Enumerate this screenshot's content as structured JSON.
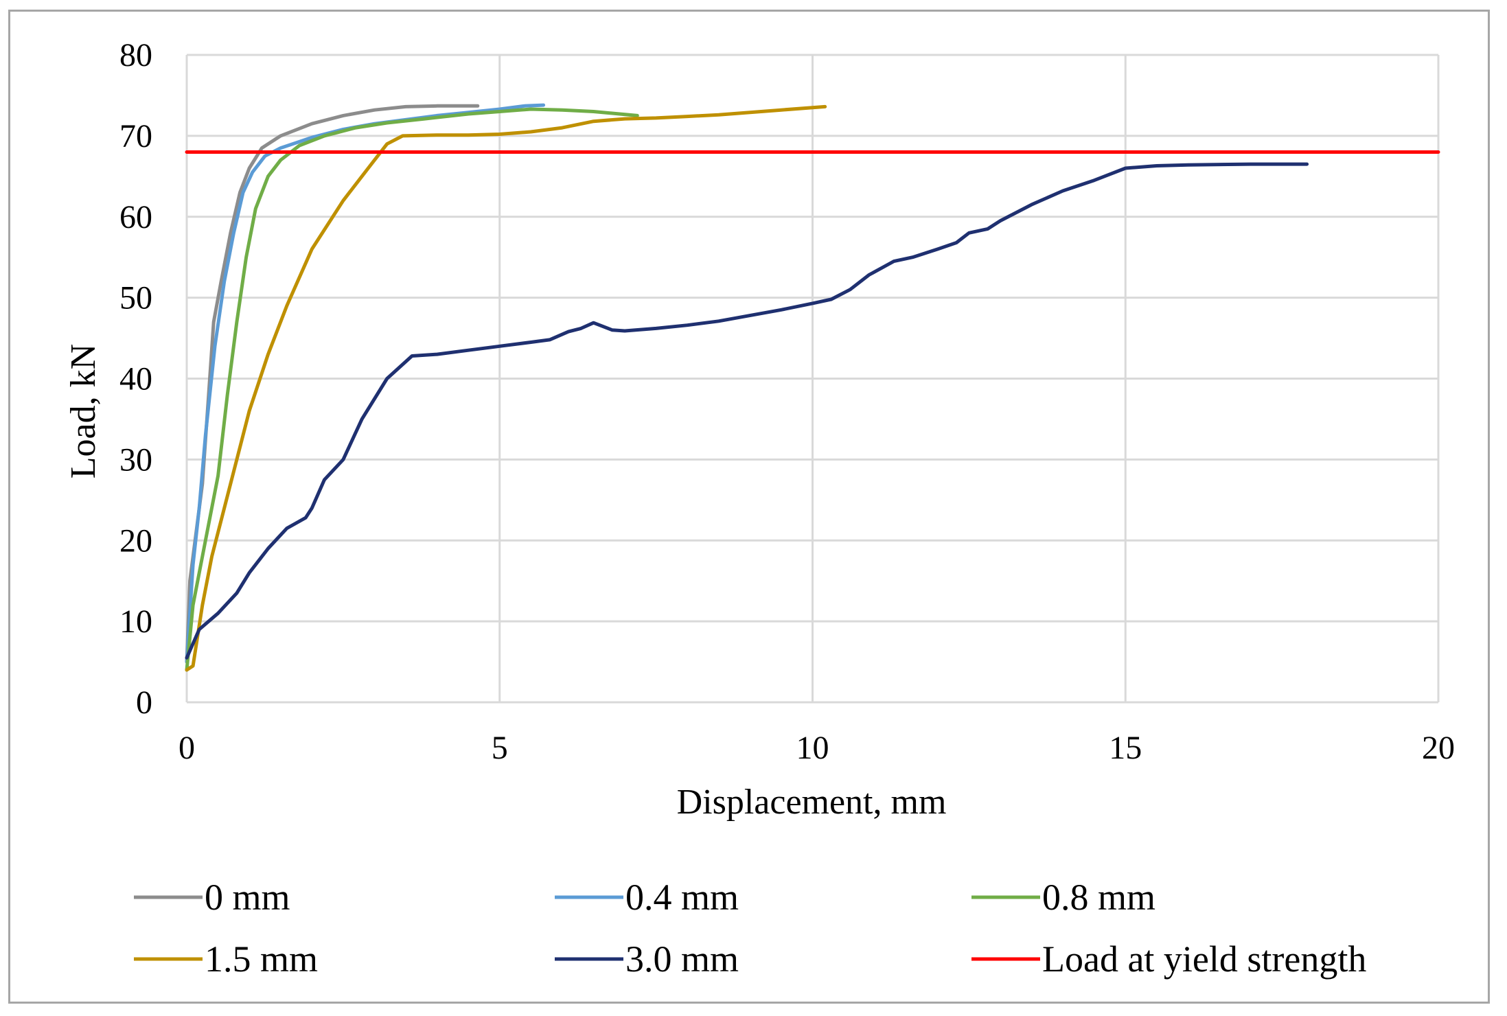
{
  "chart_data": {
    "type": "line",
    "title": "",
    "xlabel": "Displacement, mm",
    "ylabel": "Load, kN",
    "xlim": [
      0,
      20
    ],
    "ylim": [
      0,
      80
    ],
    "xticks": [
      0,
      5,
      10,
      15,
      20
    ],
    "yticks": [
      0,
      10,
      20,
      30,
      40,
      50,
      60,
      70,
      80
    ],
    "grid": true,
    "legend_position": "bottom",
    "series": [
      {
        "name": "0 mm",
        "color": "#8c8c8c",
        "points": [
          [
            0,
            5
          ],
          [
            0.05,
            15
          ],
          [
            0.15,
            21
          ],
          [
            0.25,
            27
          ],
          [
            0.35,
            38
          ],
          [
            0.43,
            47
          ],
          [
            0.55,
            52
          ],
          [
            0.7,
            58
          ],
          [
            0.85,
            63
          ],
          [
            1.0,
            66
          ],
          [
            1.2,
            68.5
          ],
          [
            1.5,
            70
          ],
          [
            2.0,
            71.5
          ],
          [
            2.5,
            72.5
          ],
          [
            3.0,
            73.2
          ],
          [
            3.5,
            73.6
          ],
          [
            4.0,
            73.7
          ],
          [
            4.65,
            73.7
          ]
        ]
      },
      {
        "name": "0.4 mm",
        "color": "#5b9bd5",
        "points": [
          [
            0,
            5
          ],
          [
            0.1,
            17
          ],
          [
            0.2,
            24
          ],
          [
            0.3,
            33
          ],
          [
            0.45,
            44
          ],
          [
            0.6,
            52
          ],
          [
            0.75,
            58
          ],
          [
            0.9,
            63
          ],
          [
            1.05,
            65.5
          ],
          [
            1.25,
            67.5
          ],
          [
            1.5,
            68.5
          ],
          [
            2.0,
            69.8
          ],
          [
            2.5,
            70.8
          ],
          [
            3.0,
            71.5
          ],
          [
            3.5,
            72
          ],
          [
            4.0,
            72.5
          ],
          [
            4.5,
            72.9
          ],
          [
            5.0,
            73.3
          ],
          [
            5.4,
            73.7
          ],
          [
            5.7,
            73.8
          ]
        ]
      },
      {
        "name": "0.8 mm",
        "color": "#70ad47",
        "points": [
          [
            0,
            4
          ],
          [
            0.1,
            12
          ],
          [
            0.3,
            20
          ],
          [
            0.5,
            28
          ],
          [
            0.65,
            38
          ],
          [
            0.8,
            47
          ],
          [
            0.95,
            55
          ],
          [
            1.1,
            61
          ],
          [
            1.3,
            65
          ],
          [
            1.5,
            67
          ],
          [
            1.8,
            68.8
          ],
          [
            2.2,
            70
          ],
          [
            2.7,
            71
          ],
          [
            3.2,
            71.6
          ],
          [
            3.8,
            72.1
          ],
          [
            4.5,
            72.7
          ],
          [
            5.0,
            73
          ],
          [
            5.5,
            73.3
          ],
          [
            6.0,
            73.2
          ],
          [
            6.5,
            73
          ],
          [
            7.2,
            72.5
          ]
        ]
      },
      {
        "name": "1.5 mm",
        "color": "#bf9000",
        "points": [
          [
            0,
            4
          ],
          [
            0.1,
            4.5
          ],
          [
            0.25,
            12
          ],
          [
            0.4,
            18
          ],
          [
            0.6,
            24
          ],
          [
            0.8,
            30
          ],
          [
            1.0,
            36
          ],
          [
            1.3,
            43
          ],
          [
            1.6,
            49
          ],
          [
            2.0,
            56
          ],
          [
            2.5,
            62
          ],
          [
            2.9,
            66
          ],
          [
            3.2,
            69
          ],
          [
            3.45,
            70
          ],
          [
            4.0,
            70.1
          ],
          [
            4.5,
            70.1
          ],
          [
            5.0,
            70.2
          ],
          [
            5.5,
            70.5
          ],
          [
            6.0,
            71
          ],
          [
            6.5,
            71.8
          ],
          [
            7.0,
            72.1
          ],
          [
            7.5,
            72.2
          ],
          [
            8.0,
            72.4
          ],
          [
            8.5,
            72.6
          ],
          [
            9.0,
            72.9
          ],
          [
            9.5,
            73.2
          ],
          [
            10.2,
            73.6
          ]
        ]
      },
      {
        "name": "3.0 mm",
        "color": "#1f3070",
        "points": [
          [
            0,
            5.5
          ],
          [
            0.2,
            9
          ],
          [
            0.5,
            11
          ],
          [
            0.8,
            13.5
          ],
          [
            1.0,
            16
          ],
          [
            1.3,
            19
          ],
          [
            1.6,
            21.5
          ],
          [
            1.9,
            22.8
          ],
          [
            2.0,
            24
          ],
          [
            2.2,
            27.5
          ],
          [
            2.5,
            30
          ],
          [
            2.8,
            35
          ],
          [
            3.2,
            40
          ],
          [
            3.6,
            42.8
          ],
          [
            4.0,
            43
          ],
          [
            4.5,
            43.5
          ],
          [
            5.0,
            44
          ],
          [
            5.5,
            44.5
          ],
          [
            5.8,
            44.8
          ],
          [
            6.1,
            45.8
          ],
          [
            6.3,
            46.2
          ],
          [
            6.5,
            46.9
          ],
          [
            6.8,
            46
          ],
          [
            7.0,
            45.9
          ],
          [
            7.5,
            46.2
          ],
          [
            8.0,
            46.6
          ],
          [
            8.5,
            47.1
          ],
          [
            9.0,
            47.8
          ],
          [
            9.5,
            48.5
          ],
          [
            10.0,
            49.3
          ],
          [
            10.3,
            49.8
          ],
          [
            10.6,
            51
          ],
          [
            10.9,
            52.8
          ],
          [
            11.3,
            54.5
          ],
          [
            11.6,
            55
          ],
          [
            12.0,
            56
          ],
          [
            12.3,
            56.8
          ],
          [
            12.5,
            58
          ],
          [
            12.8,
            58.5
          ],
          [
            13.0,
            59.5
          ],
          [
            13.5,
            61.5
          ],
          [
            14.0,
            63.2
          ],
          [
            14.5,
            64.5
          ],
          [
            15.0,
            66
          ],
          [
            15.5,
            66.3
          ],
          [
            16.0,
            66.4
          ],
          [
            17.0,
            66.5
          ],
          [
            17.9,
            66.5
          ]
        ]
      },
      {
        "name": "Load at yield strength",
        "color": "#ff0000",
        "points": [
          [
            0,
            68
          ],
          [
            20,
            68
          ]
        ]
      }
    ]
  }
}
